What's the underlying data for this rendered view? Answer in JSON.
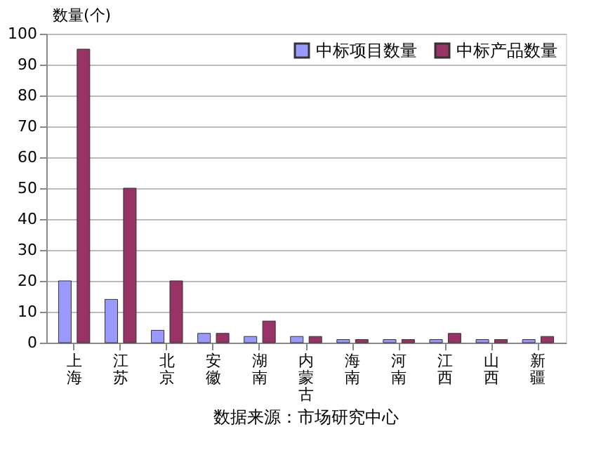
{
  "chart_data": {
    "type": "bar",
    "ylabel": "数量(个)",
    "categories": [
      "上海",
      "江苏",
      "北京",
      "安徽",
      "湖南",
      "内蒙古",
      "海南",
      "河南",
      "江西",
      "山西",
      "新疆"
    ],
    "series": [
      {
        "name": "中标项目数量",
        "color": "#9999ff",
        "values": [
          20,
          14,
          4,
          3,
          2,
          2,
          1,
          1,
          1,
          1,
          1
        ]
      },
      {
        "name": "中标产品数量",
        "color": "#993366",
        "values": [
          95,
          50,
          20,
          3,
          7,
          2,
          1,
          1,
          3,
          1,
          2
        ]
      }
    ],
    "ylim": [
      0,
      100
    ],
    "yticks": [
      0,
      10,
      20,
      30,
      40,
      50,
      60,
      70,
      80,
      90,
      100
    ],
    "grid": "y",
    "legend": "top right",
    "annotations": [
      "数据来源：市场研究中心"
    ]
  }
}
